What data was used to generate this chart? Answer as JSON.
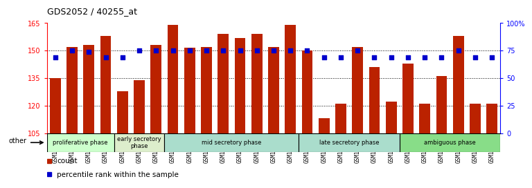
{
  "title": "GDS2052 / 40255_at",
  "samples": [
    "GSM109814",
    "GSM109815",
    "GSM109816",
    "GSM109817",
    "GSM109820",
    "GSM109821",
    "GSM109822",
    "GSM109824",
    "GSM109825",
    "GSM109826",
    "GSM109827",
    "GSM109828",
    "GSM109829",
    "GSM109830",
    "GSM109831",
    "GSM109834",
    "GSM109835",
    "GSM109836",
    "GSM109837",
    "GSM109838",
    "GSM109839",
    "GSM109818",
    "GSM109819",
    "GSM109823",
    "GSM109832",
    "GSM109833",
    "GSM109840"
  ],
  "counts": [
    135,
    152,
    153,
    158,
    128,
    134,
    153,
    164,
    151.5,
    152,
    159,
    157,
    159,
    152,
    164,
    150,
    113,
    121,
    152,
    141,
    122,
    143,
    121,
    136,
    158,
    121,
    121
  ],
  "percentiles": [
    69,
    75,
    74,
    69,
    69,
    75,
    75,
    75,
    75,
    75,
    75,
    75,
    75,
    75,
    75,
    75,
    69,
    69,
    75,
    69,
    69,
    69,
    69,
    69,
    75,
    69,
    69
  ],
  "phases": [
    {
      "label": "proliferative phase",
      "start": 0,
      "end": 4,
      "color": "#ccffcc"
    },
    {
      "label": "early secretory\nphase",
      "start": 4,
      "end": 7,
      "color": "#ddeecc"
    },
    {
      "label": "mid secretory phase",
      "start": 7,
      "end": 15,
      "color": "#aaddcc"
    },
    {
      "label": "late secretory phase",
      "start": 15,
      "end": 21,
      "color": "#aaddcc"
    },
    {
      "label": "ambiguous phase",
      "start": 21,
      "end": 27,
      "color": "#88dd88"
    }
  ],
  "ylim": [
    105,
    165
  ],
  "yticks": [
    105,
    120,
    135,
    150,
    165
  ],
  "y2lim": [
    0,
    100
  ],
  "y2ticks": [
    0,
    25,
    50,
    75,
    100
  ],
  "bar_color": "#bb2200",
  "marker_color": "#0000cc",
  "bar_width": 0.65,
  "legend_count_label": "count",
  "legend_pct_label": "percentile rank within the sample",
  "other_label": "other",
  "bg_tick_color": "#dddddd"
}
